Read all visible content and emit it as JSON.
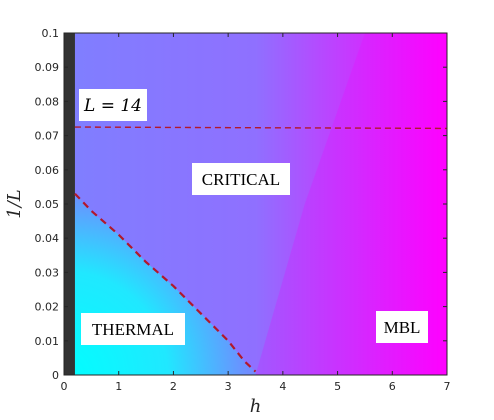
{
  "chart_data": {
    "type": "area",
    "title": "",
    "xlabel": "h",
    "ylabel": "1/L",
    "xlim": [
      0,
      7
    ],
    "ylim": [
      0,
      0.1
    ],
    "x_ticks": [
      "0",
      "1",
      "2",
      "3",
      "4",
      "5",
      "6",
      "7"
    ],
    "y_ticks": [
      "0",
      "0.01",
      "0.02",
      "0.03",
      "0.04",
      "0.05",
      "0.06",
      "0.07",
      "0.08",
      "0.09",
      "0.1"
    ],
    "grid": false,
    "colors": {
      "thermal": "#00ffff",
      "critical": "#7f7fff",
      "mbl": "#ff00ff",
      "boundary": "#b2182b",
      "thermal_limit_bar": "#333333"
    },
    "regions": [
      {
        "label": "THERMAL"
      },
      {
        "label": "CRITICAL"
      },
      {
        "label": "MBL"
      }
    ],
    "annotations": [
      {
        "text": "L = 14",
        "x": 0.3,
        "y": 0.079
      }
    ],
    "thermal_limit": {
      "x": [
        0,
        0.2
      ]
    },
    "series": [
      {
        "style": "dashed",
        "x": [
          0.2,
          0.5,
          1.0,
          1.5,
          2.0,
          2.5,
          3.0,
          3.3,
          3.5
        ],
        "y": [
          0.053,
          0.048,
          0.041,
          0.033,
          0.026,
          0.018,
          0.01,
          0.004,
          0.001
        ]
      },
      {
        "style": "dashed",
        "x": [
          0.2,
          3.5,
          7.0
        ],
        "y": [
          0.0725,
          0.0723,
          0.0721
        ]
      }
    ],
    "phase_edge_critical_mbl": {
      "x": [
        3.5,
        4.4,
        5.5
      ],
      "y": [
        0.0,
        0.05,
        0.1
      ]
    }
  }
}
